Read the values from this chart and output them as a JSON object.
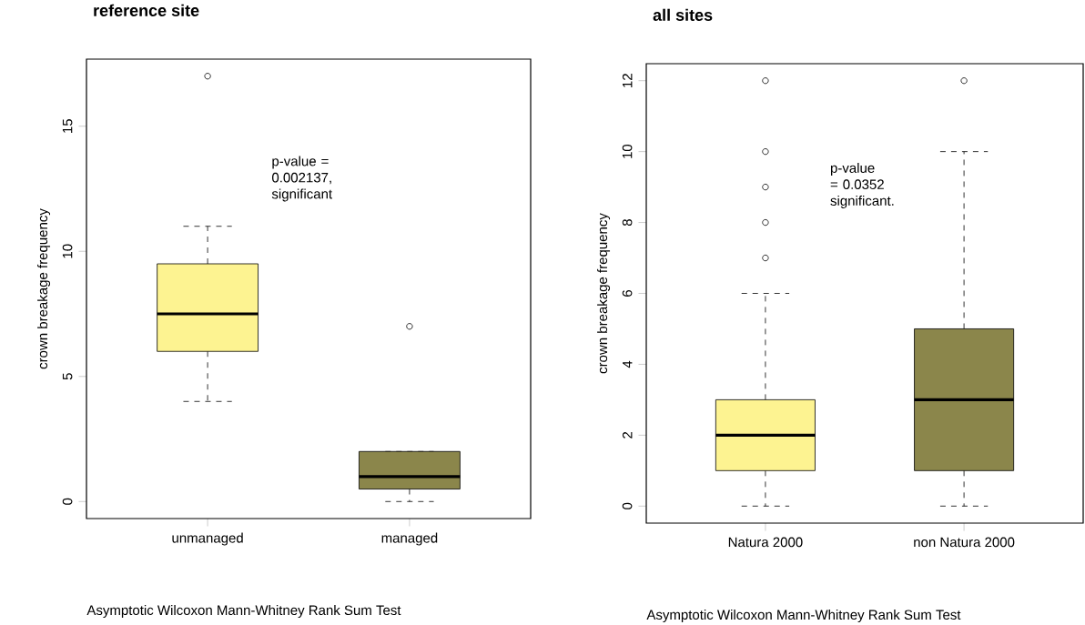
{
  "chart_data": [
    {
      "type": "box",
      "title": "reference site",
      "ylabel": "crown breakage frequency",
      "categories": [
        "unmanaged",
        "managed"
      ],
      "boxes": [
        {
          "low": 4,
          "q1": 6,
          "median": 7.5,
          "q3": 9.5,
          "high": 11,
          "outliers": [
            17
          ]
        },
        {
          "low": 0,
          "q1": 0.5,
          "median": 1,
          "q3": 2,
          "high": 2,
          "outliers": [
            7
          ]
        }
      ],
      "colors": [
        "#fdf391",
        "#8b864b"
      ],
      "ylim": [
        -0.68,
        17.68
      ],
      "yticks": [
        0,
        5,
        10,
        15
      ],
      "annotations": [
        "p-value = 0.002137, significant",
        "Asymptotic Wilcoxon Mann-Whitney Rank Sum Test"
      ]
    },
    {
      "type": "box",
      "title": "all sites",
      "ylabel": "crown breakage frequency",
      "categories": [
        "Natura 2000",
        "non Natura 2000"
      ],
      "boxes": [
        {
          "low": 0,
          "q1": 1,
          "median": 2,
          "q3": 3,
          "high": 6,
          "outliers": [
            7,
            8,
            9,
            10,
            12
          ]
        },
        {
          "low": 0,
          "q1": 1,
          "median": 3,
          "q3": 5,
          "high": 10,
          "outliers": [
            12
          ]
        }
      ],
      "colors": [
        "#fdf391",
        "#8b864b"
      ],
      "ylim": [
        -0.48,
        12.48
      ],
      "yticks": [
        0,
        2,
        4,
        6,
        8,
        10,
        12
      ],
      "annotations": [
        "p-value = 0.0352 significant.",
        "Asymptotic Wilcoxon Mann-Whitney Rank Sum Test"
      ]
    }
  ]
}
